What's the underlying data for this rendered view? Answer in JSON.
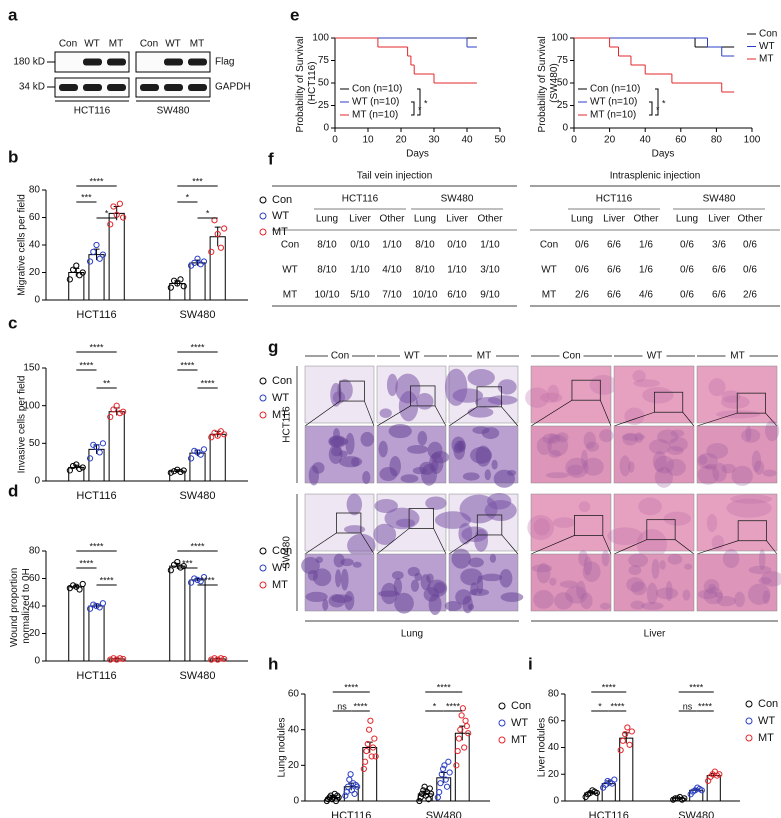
{
  "panels": [
    "a",
    "b",
    "c",
    "d",
    "e",
    "f",
    "g",
    "h",
    "i"
  ],
  "blot": {
    "lanes": [
      "Con",
      "WT",
      "MT"
    ],
    "cell_lines": [
      "HCT116",
      "SW480"
    ],
    "markers": [
      "180 kD",
      "34 kD"
    ],
    "proteins": [
      "Flag",
      "GAPDH"
    ]
  },
  "chart_data": [
    {
      "type": "bar",
      "ylabel": "Migrative cells per field",
      "categories": [
        "HCT116",
        "SW480"
      ],
      "ylim": [
        0,
        80
      ],
      "yticks": [
        0,
        20,
        40,
        60,
        80
      ],
      "series": [
        {
          "name": "Con",
          "color": "#000000",
          "values": [
            20,
            12
          ],
          "errors": [
            3,
            2
          ],
          "points": [
            [
              15,
              22,
              25,
              18,
              20
            ],
            [
              9,
              14,
              12,
              15,
              10
            ]
          ]
        },
        {
          "name": "WT",
          "color": "#2b3fc6",
          "values": [
            33,
            27
          ],
          "errors": [
            4,
            2
          ],
          "points": [
            [
              28,
              35,
              40,
              30,
              33
            ],
            [
              25,
              27,
              30,
              26,
              28
            ]
          ]
        },
        {
          "name": "MT",
          "color": "#e3262b",
          "values": [
            63,
            46
          ],
          "errors": [
            5,
            7
          ],
          "points": [
            [
              55,
              68,
              62,
              70,
              60
            ],
            [
              35,
              58,
              48,
              38,
              52
            ]
          ]
        }
      ],
      "significance": [
        {
          "category": "HCT116",
          "groups": [
            "Con",
            "MT"
          ],
          "label": "****"
        },
        {
          "category": "HCT116",
          "groups": [
            "Con",
            "WT"
          ],
          "label": "***"
        },
        {
          "category": "HCT116",
          "groups": [
            "WT",
            "MT"
          ],
          "label": "*"
        },
        {
          "category": "SW480",
          "groups": [
            "Con",
            "MT"
          ],
          "label": "***"
        },
        {
          "category": "SW480",
          "groups": [
            "Con",
            "WT"
          ],
          "label": "*"
        },
        {
          "category": "SW480",
          "groups": [
            "WT",
            "MT"
          ],
          "label": "*"
        }
      ]
    },
    {
      "type": "bar",
      "ylabel": "Invasive cells per field",
      "categories": [
        "HCT116",
        "SW480"
      ],
      "ylim": [
        0,
        150
      ],
      "yticks": [
        0,
        50,
        100,
        150
      ],
      "series": [
        {
          "name": "Con",
          "color": "#000000",
          "values": [
            18,
            13
          ],
          "errors": [
            3,
            2
          ],
          "points": [
            [
              14,
              20,
              22,
              16,
              18
            ],
            [
              11,
              13,
              15,
              12,
              14
            ]
          ]
        },
        {
          "name": "WT",
          "color": "#2b3fc6",
          "values": [
            42,
            37
          ],
          "errors": [
            6,
            4
          ],
          "points": [
            [
              30,
              48,
              45,
              38,
              50
            ],
            [
              30,
              40,
              38,
              35,
              42
            ]
          ]
        },
        {
          "name": "MT",
          "color": "#e3262b",
          "values": [
            92,
            62
          ],
          "errors": [
            5,
            4
          ],
          "points": [
            [
              85,
              95,
              100,
              90,
              92
            ],
            [
              58,
              64,
              60,
              66,
              62
            ]
          ]
        }
      ],
      "significance": [
        {
          "category": "HCT116",
          "groups": [
            "Con",
            "MT"
          ],
          "label": "****"
        },
        {
          "category": "HCT116",
          "groups": [
            "Con",
            "WT"
          ],
          "label": "****"
        },
        {
          "category": "HCT116",
          "groups": [
            "WT",
            "MT"
          ],
          "label": "**"
        },
        {
          "category": "SW480",
          "groups": [
            "Con",
            "MT"
          ],
          "label": "****"
        },
        {
          "category": "SW480",
          "groups": [
            "Con",
            "WT"
          ],
          "label": "****"
        },
        {
          "category": "SW480",
          "groups": [
            "WT",
            "MT"
          ],
          "label": "****"
        }
      ]
    },
    {
      "type": "bar",
      "ylabel": "Wound proportion normalized to 0H",
      "categories": [
        "HCT116",
        "SW480"
      ],
      "ylim": [
        0,
        80
      ],
      "yticks": [
        0,
        20,
        40,
        60,
        80
      ],
      "series": [
        {
          "name": "Con",
          "color": "#000000",
          "values": [
            54,
            69
          ],
          "errors": [
            1,
            2
          ],
          "points": [
            [
              53,
              55,
              54,
              52,
              56
            ],
            [
              66,
              70,
              72,
              68,
              69
            ]
          ]
        },
        {
          "name": "WT",
          "color": "#2b3fc6",
          "values": [
            40,
            59
          ],
          "errors": [
            1.5,
            1
          ],
          "points": [
            [
              38,
              41,
              40,
              39,
              42
            ],
            [
              57,
              60,
              59,
              58,
              61
            ]
          ]
        },
        {
          "name": "MT",
          "color": "#e3262b",
          "values": [
            1.5,
            1.5
          ],
          "errors": [
            0.5,
            0.5
          ],
          "points": [
            [
              1,
              2,
              1,
              2,
              1.5
            ],
            [
              1,
              2,
              1,
              2,
              1.5
            ]
          ]
        }
      ],
      "significance": [
        {
          "category": "HCT116",
          "groups": [
            "Con",
            "MT"
          ],
          "label": "****"
        },
        {
          "category": "HCT116",
          "groups": [
            "Con",
            "WT"
          ],
          "label": "****"
        },
        {
          "category": "HCT116",
          "groups": [
            "WT",
            "MT"
          ],
          "label": "****"
        },
        {
          "category": "SW480",
          "groups": [
            "Con",
            "MT"
          ],
          "label": "****"
        },
        {
          "category": "SW480",
          "groups": [
            "Con",
            "WT"
          ],
          "label": "***"
        },
        {
          "category": "SW480",
          "groups": [
            "WT",
            "MT"
          ],
          "label": "****"
        }
      ]
    },
    {
      "type": "line",
      "ylabel": "Probability of Survival (HCT116)",
      "xlabel": "Days",
      "xlim": [
        0,
        50
      ],
      "xticks": [
        0,
        10,
        20,
        30,
        40,
        50
      ],
      "ylim": [
        0,
        100
      ],
      "yticks": [
        0,
        25,
        50,
        75,
        100
      ],
      "series": [
        {
          "name": "Con (n=10)",
          "color": "#000000",
          "x": [
            0,
            43
          ],
          "values": [
            100,
            100
          ]
        },
        {
          "name": "WT (n=10)",
          "color": "#2b3fc6",
          "x": [
            0,
            40,
            43
          ],
          "values": [
            100,
            90,
            90
          ]
        },
        {
          "name": "MT (n=10)",
          "color": "#e3262b",
          "x": [
            0,
            13,
            22,
            23,
            24,
            30,
            43
          ],
          "values": [
            100,
            90,
            80,
            70,
            60,
            50,
            50
          ]
        }
      ],
      "annotations": [
        {
          "groups": [
            "Con (n=10)",
            "MT (n=10)"
          ],
          "label": "*"
        },
        {
          "groups": [
            "WT (n=10)",
            "MT (n=10)"
          ],
          "label": "*"
        }
      ]
    },
    {
      "type": "line",
      "ylabel": "Probability of Survival (SW480)",
      "xlabel": "Days",
      "xlim": [
        0,
        100
      ],
      "xticks": [
        0,
        20,
        40,
        60,
        80,
        100
      ],
      "ylim": [
        0,
        100
      ],
      "yticks": [
        0,
        25,
        50,
        75,
        100
      ],
      "series": [
        {
          "name": "Con (n=10)",
          "color": "#000000",
          "x": [
            0,
            68,
            90
          ],
          "values": [
            100,
            90,
            90
          ]
        },
        {
          "name": "WT (n=10)",
          "color": "#2b3fc6",
          "x": [
            0,
            75,
            83,
            90
          ],
          "values": [
            100,
            90,
            80,
            80
          ]
        },
        {
          "name": "MT (n=10)",
          "color": "#e3262b",
          "x": [
            0,
            20,
            25,
            32,
            40,
            55,
            83,
            90
          ],
          "values": [
            100,
            90,
            80,
            70,
            60,
            50,
            40,
            40
          ]
        }
      ],
      "legend_labels": [
        "Con",
        "WT",
        "MT"
      ],
      "annotations": [
        {
          "groups": [
            "Con (n=10)",
            "MT (n=10)"
          ],
          "label": "*"
        },
        {
          "groups": [
            "WT (n=10)",
            "MT (n=10)"
          ],
          "label": "*"
        }
      ]
    },
    {
      "type": "bar",
      "ylabel": "Lung nodules",
      "categories": [
        "HCT116",
        "SW480"
      ],
      "ylim": [
        0,
        60
      ],
      "yticks": [
        0,
        20,
        40,
        60
      ],
      "series": [
        {
          "name": "Con",
          "color": "#000000",
          "values": [
            2,
            4
          ],
          "errors": [
            1,
            1.5
          ],
          "points": [
            [
              0,
              1,
              2,
              3,
              1,
              2,
              4,
              0,
              3,
              2
            ],
            [
              0,
              2,
              4,
              6,
              8,
              3,
              5,
              1,
              7,
              4
            ]
          ]
        },
        {
          "name": "WT",
          "color": "#2b3fc6",
          "values": [
            8,
            13
          ],
          "errors": [
            2,
            3
          ],
          "points": [
            [
              3,
              5,
              8,
              12,
              15,
              6,
              10,
              4,
              9,
              8
            ],
            [
              2,
              5,
              10,
              15,
              18,
              20,
              12,
              8,
              22,
              16
            ]
          ]
        },
        {
          "name": "MT",
          "color": "#e3262b",
          "values": [
            30,
            38
          ],
          "errors": [
            3,
            4
          ],
          "points": [
            [
              18,
              22,
              28,
              32,
              40,
              45,
              25,
              30,
              35,
              25
            ],
            [
              20,
              28,
              35,
              40,
              48,
              52,
              30,
              45,
              42,
              38
            ]
          ]
        }
      ],
      "significance": [
        {
          "category": "HCT116",
          "groups": [
            "Con",
            "MT"
          ],
          "label": "****"
        },
        {
          "category": "HCT116",
          "groups": [
            "Con",
            "WT"
          ],
          "label": "ns"
        },
        {
          "category": "HCT116",
          "groups": [
            "WT",
            "MT"
          ],
          "label": "****"
        },
        {
          "category": "SW480",
          "groups": [
            "Con",
            "MT"
          ],
          "label": "****"
        },
        {
          "category": "SW480",
          "groups": [
            "Con",
            "WT"
          ],
          "label": "*"
        },
        {
          "category": "SW480",
          "groups": [
            "WT",
            "MT"
          ],
          "label": "****"
        }
      ]
    },
    {
      "type": "bar",
      "ylabel": "Liver nodules",
      "categories": [
        "HCT116",
        "SW480"
      ],
      "ylim": [
        0,
        80
      ],
      "yticks": [
        0,
        20,
        40,
        60,
        80
      ],
      "series": [
        {
          "name": "Con",
          "color": "#000000",
          "values": [
            6,
            2
          ],
          "errors": [
            1,
            0.5
          ],
          "points": [
            [
              3,
              5,
              6,
              8,
              7,
              6
            ],
            [
              1,
              2,
              2,
              3,
              1,
              2
            ]
          ]
        },
        {
          "name": "WT",
          "color": "#2b3fc6",
          "values": [
            13,
            8
          ],
          "errors": [
            2,
            1
          ],
          "points": [
            [
              10,
              12,
              15,
              14,
              13,
              16
            ],
            [
              5,
              7,
              8,
              10,
              9,
              8
            ]
          ]
        },
        {
          "name": "MT",
          "color": "#e3262b",
          "values": [
            47,
            19
          ],
          "errors": [
            4,
            1.5
          ],
          "points": [
            [
              38,
              45,
              50,
              55,
              42,
              52
            ],
            [
              15,
              18,
              20,
              22,
              19,
              20
            ]
          ]
        }
      ],
      "significance": [
        {
          "category": "HCT116",
          "groups": [
            "Con",
            "MT"
          ],
          "label": "****"
        },
        {
          "category": "HCT116",
          "groups": [
            "Con",
            "WT"
          ],
          "label": "*"
        },
        {
          "category": "HCT116",
          "groups": [
            "WT",
            "MT"
          ],
          "label": "****"
        },
        {
          "category": "SW480",
          "groups": [
            "Con",
            "MT"
          ],
          "label": "****"
        },
        {
          "category": "SW480",
          "groups": [
            "Con",
            "WT"
          ],
          "label": "ns"
        },
        {
          "category": "SW480",
          "groups": [
            "WT",
            "MT"
          ],
          "label": "****"
        }
      ]
    }
  ],
  "table": {
    "groups": [
      "Tail vein injection",
      "Intrasplenic injection"
    ],
    "subgroups": [
      "HCT116",
      "SW480",
      "HCT116",
      "SW480"
    ],
    "columns": [
      "Lung",
      "Liver",
      "Other",
      "Lung",
      "Liver",
      "Other",
      "Lung",
      "Liver",
      "Other",
      "Lung",
      "Liver",
      "Other"
    ],
    "rows": [
      {
        "label": "Con",
        "cells": [
          "8/10",
          "0/10",
          "1/10",
          "8/10",
          "0/10",
          "1/10",
          "0/6",
          "6/6",
          "1/6",
          "0/6",
          "3/6",
          "0/6"
        ]
      },
      {
        "label": "WT",
        "cells": [
          "8/10",
          "1/10",
          "4/10",
          "8/10",
          "1/10",
          "3/10",
          "0/6",
          "6/6",
          "1/6",
          "0/6",
          "6/6",
          "0/6"
        ]
      },
      {
        "label": "MT",
        "cells": [
          "10/10",
          "5/10",
          "7/10",
          "10/10",
          "6/10",
          "9/10",
          "2/6",
          "6/6",
          "4/6",
          "0/6",
          "6/6",
          "2/6"
        ]
      }
    ]
  },
  "histology": {
    "columns": [
      "Con",
      "WT",
      "MT"
    ],
    "rows": [
      "HCT116",
      "SW480"
    ],
    "tissues": [
      "Lung",
      "Liver"
    ]
  }
}
